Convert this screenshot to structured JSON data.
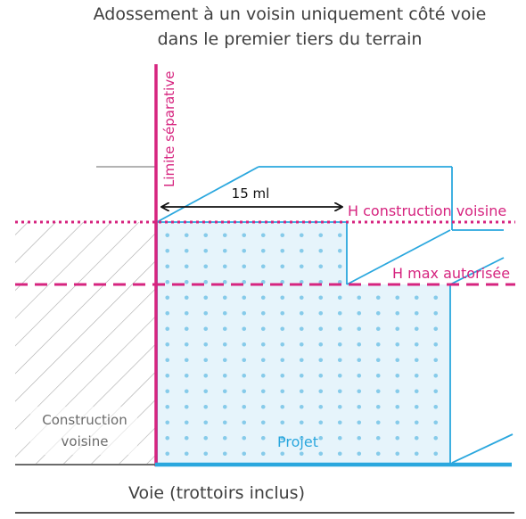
{
  "title_line1": "Adossement à un voisin uniquement côté voie",
  "title_line2": "dans le premier tiers du terrain",
  "labels": {
    "limite": "Limite séparative",
    "distance": "15 ml",
    "h_voisine": "H construction voisine",
    "h_max": "H max autorisée",
    "construction_line1": "Construction",
    "construction_line2": "voisine",
    "projet": "Projet",
    "voie": "Voie (trottoirs inclus)"
  },
  "colors": {
    "magenta": "#d6247f",
    "blue": "#2aa7de",
    "dot": "#86cbea",
    "hatch": "#aaaaaa",
    "text": "#3f3f3f",
    "grey_text": "#6b6b6b"
  }
}
